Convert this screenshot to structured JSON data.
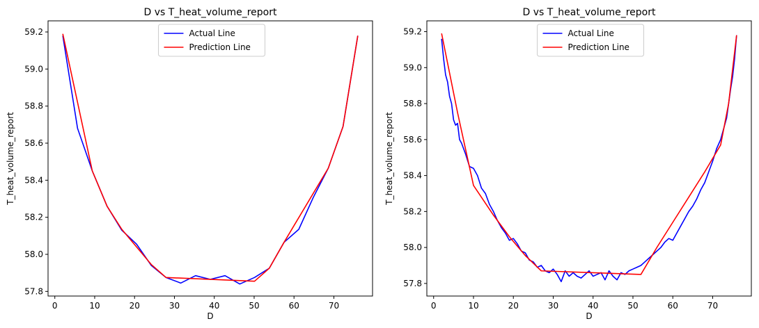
{
  "chart_data": [
    {
      "type": "line",
      "title": "D vs T_heat_volume_report",
      "xlabel": "D",
      "ylabel": "T_heat_volume_report",
      "xlim": [
        -1.7,
        79.7
      ],
      "ylim": [
        57.775,
        59.26
      ],
      "xticks": [
        0,
        10,
        20,
        30,
        40,
        50,
        60,
        70
      ],
      "yticks": [
        57.8,
        58.0,
        58.2,
        58.4,
        58.6,
        58.8,
        59.0,
        59.2
      ],
      "ytick_labels": [
        "57.8",
        "58.0",
        "58.2",
        "58.4",
        "58.6",
        "58.8",
        "59.0",
        "59.2"
      ],
      "grid": false,
      "legend_position": "top-center",
      "series": [
        {
          "name": "Actual Line",
          "color": "#0000ff",
          "x": [
            2,
            5.7,
            9.4,
            13.1,
            16.8,
            20.5,
            24.2,
            27.9,
            31.6,
            35.3,
            39.0,
            42.7,
            46.4,
            50.1,
            53.8,
            57.5,
            61.2,
            64.9,
            68.6,
            72.3,
            76
          ],
          "y": [
            59.18,
            58.68,
            58.45,
            58.26,
            58.13,
            58.055,
            57.94,
            57.875,
            57.845,
            57.885,
            57.865,
            57.885,
            57.84,
            57.875,
            57.925,
            58.065,
            58.135,
            58.31,
            58.465,
            58.69,
            59.18
          ]
        },
        {
          "name": "Prediction Line",
          "color": "#ff0000",
          "x": [
            2,
            9.4,
            13.1,
            16.8,
            24.2,
            27.9,
            50.1,
            53.8,
            57.5,
            68.6,
            72.3,
            76
          ],
          "y": [
            59.19,
            58.45,
            58.26,
            58.135,
            57.945,
            57.875,
            57.855,
            57.925,
            58.065,
            58.465,
            58.69,
            59.18
          ]
        }
      ]
    },
    {
      "type": "line",
      "title": "D vs T_heat_volume_report",
      "xlabel": "D",
      "ylabel": "T_heat_volume_report",
      "xlim": [
        -1.7,
        79.7
      ],
      "ylim": [
        57.73,
        59.26
      ],
      "xticks": [
        0,
        10,
        20,
        30,
        40,
        50,
        60,
        70
      ],
      "yticks": [
        57.8,
        58.0,
        58.2,
        58.4,
        58.6,
        58.8,
        59.0,
        59.2
      ],
      "ytick_labels": [
        "57.8",
        "58.0",
        "58.2",
        "58.4",
        "58.6",
        "58.8",
        "59.0",
        "59.2"
      ],
      "grid": false,
      "legend_position": "top-center",
      "series": [
        {
          "name": "Actual Line",
          "color": "#0000ff",
          "x": [
            2,
            2.5,
            3,
            3.5,
            4,
            4.5,
            5,
            5.5,
            6,
            6.5,
            7,
            8,
            9,
            10,
            11,
            12,
            13,
            14,
            15,
            16,
            17,
            18,
            19,
            20,
            21,
            22,
            23,
            24,
            25,
            26,
            27,
            28,
            29,
            30,
            31,
            32,
            33,
            34,
            35,
            36,
            37,
            38,
            39,
            40,
            41,
            42,
            43,
            44,
            45,
            46,
            47,
            48,
            49,
            50,
            51,
            52,
            53,
            54,
            55,
            56,
            57,
            58,
            59,
            60,
            61,
            62,
            63,
            64,
            65,
            66,
            67,
            68,
            69,
            70,
            71,
            72,
            73,
            73.5,
            74,
            74.5,
            75,
            75.5,
            76
          ],
          "y": [
            59.16,
            59.05,
            58.96,
            58.92,
            58.84,
            58.8,
            58.71,
            58.68,
            58.69,
            58.6,
            58.58,
            58.52,
            58.45,
            58.44,
            58.4,
            58.33,
            58.3,
            58.24,
            58.2,
            58.15,
            58.11,
            58.08,
            58.04,
            58.05,
            58.02,
            57.98,
            57.97,
            57.93,
            57.92,
            57.89,
            57.9,
            57.87,
            57.86,
            57.88,
            57.85,
            57.81,
            57.87,
            57.84,
            57.86,
            57.84,
            57.83,
            57.85,
            57.87,
            57.84,
            57.85,
            57.86,
            57.82,
            57.87,
            57.84,
            57.82,
            57.86,
            57.85,
            57.87,
            57.88,
            57.89,
            57.9,
            57.92,
            57.94,
            57.96,
            57.98,
            58.0,
            58.03,
            58.05,
            58.04,
            58.08,
            58.12,
            58.16,
            58.2,
            58.23,
            58.27,
            58.32,
            58.36,
            58.42,
            58.48,
            58.55,
            58.6,
            58.68,
            58.72,
            58.8,
            58.88,
            58.95,
            59.05,
            59.18
          ]
        },
        {
          "name": "Prediction Line",
          "color": "#ff0000",
          "x": [
            2,
            6,
            10,
            15,
            19,
            23,
            27,
            52,
            56,
            60,
            64,
            68,
            72,
            74,
            76
          ],
          "y": [
            59.19,
            58.75,
            58.345,
            58.18,
            58.06,
            57.955,
            57.87,
            57.85,
            58.0,
            58.14,
            58.28,
            58.42,
            58.57,
            58.8,
            59.18
          ]
        }
      ]
    }
  ]
}
